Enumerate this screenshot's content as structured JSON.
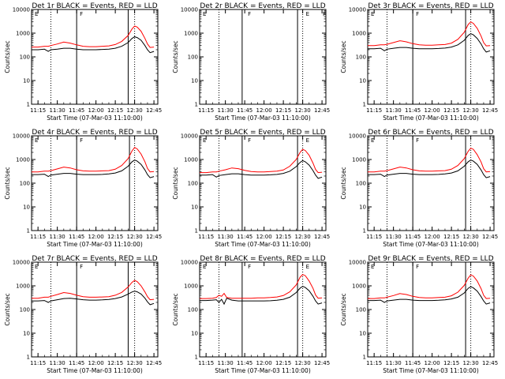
{
  "figure": {
    "title_suffix": "BLACK = Events, RED = LLD",
    "xlabel": "Start Time (07-Mar-03 11:10:00)",
    "ylabel": "Counts/sec",
    "y_ticks": [
      "1",
      "10",
      "100",
      "1000",
      "10000"
    ],
    "x_ticks": [
      "11:15",
      "11:30",
      "11:45",
      "12:00",
      "12:15",
      "12:30",
      "12:45"
    ],
    "colors": {
      "events": "#000000",
      "lld": "#ff0000"
    }
  },
  "chart_data": [
    {
      "type": "line",
      "detector": "Det 1r",
      "title": "Det 1r BLACK = Events, RED = LLD",
      "xlabel": "Start Time (07-Mar-03 11:10:00)",
      "ylabel": "Counts/sec",
      "y_scale": "log",
      "ylim": [
        1,
        10000
      ],
      "x_minutes_after_start": [
        0,
        5,
        10,
        13,
        15,
        20,
        25,
        30,
        35,
        40,
        45,
        50,
        55,
        60,
        65,
        70,
        75,
        78,
        80,
        82,
        85,
        88,
        90,
        92,
        95
      ],
      "series": [
        {
          "name": "Events",
          "values": [
            200,
            200,
            210,
            170,
            200,
            210,
            230,
            230,
            210,
            200,
            200,
            200,
            205,
            210,
            230,
            280,
            400,
            600,
            700,
            650,
            500,
            300,
            200,
            150,
            170
          ]
        },
        {
          "name": "LLD",
          "values": [
            260,
            260,
            280,
            280,
            300,
            350,
            420,
            380,
            320,
            280,
            270,
            270,
            280,
            290,
            330,
            450,
            800,
            1500,
            2000,
            1800,
            1200,
            600,
            350,
            250,
            260
          ]
        }
      ],
      "solid_vlines": [
        "11:45",
        "12:25"
      ],
      "dotted_vlines": [
        "11:25",
        "12:30"
      ],
      "markers": [
        "E",
        "F"
      ]
    },
    {
      "type": "line",
      "detector": "Det 2r",
      "title": "Det 2r BLACK = Events, RED = LLD",
      "xlabel": "Start Time (07-Mar-03 11:10:00)",
      "ylabel": "Counts/sec",
      "y_scale": "log",
      "ylim": [
        1,
        10000
      ],
      "series": [],
      "solid_vlines": [
        "11:43",
        "12:26"
      ],
      "dotted_vlines": [
        "11:25",
        "12:30"
      ],
      "markers": [
        "E",
        "F",
        "E",
        "F"
      ]
    },
    {
      "type": "line",
      "detector": "Det 3r",
      "title": "Det 3r BLACK = Events, RED = LLD",
      "xlabel": "Start Time (07-Mar-03 11:10:00)",
      "ylabel": "Counts/sec",
      "y_scale": "log",
      "ylim": [
        1,
        10000
      ],
      "x_minutes_after_start": [
        0,
        5,
        10,
        13,
        15,
        20,
        25,
        30,
        35,
        40,
        45,
        50,
        55,
        60,
        65,
        70,
        75,
        78,
        80,
        82,
        85,
        88,
        90,
        92,
        95
      ],
      "series": [
        {
          "name": "Events",
          "values": [
            220,
            220,
            230,
            180,
            210,
            230,
            250,
            250,
            230,
            220,
            220,
            220,
            225,
            235,
            260,
            320,
            500,
            800,
            950,
            850,
            600,
            350,
            220,
            160,
            180
          ]
        },
        {
          "name": "LLD",
          "values": [
            300,
            300,
            320,
            320,
            340,
            400,
            480,
            430,
            360,
            320,
            310,
            310,
            320,
            330,
            380,
            550,
            1100,
            2300,
            3000,
            2600,
            1600,
            750,
            400,
            290,
            300
          ]
        }
      ],
      "solid_vlines": [
        "11:45",
        "12:26"
      ],
      "dotted_vlines": [
        "11:25",
        "12:30"
      ],
      "markers": [
        "E",
        "F"
      ]
    },
    {
      "type": "line",
      "detector": "Det 4r",
      "title": "Det 4r BLACK = Events, RED = LLD",
      "xlabel": "Start Time (07-Mar-03 11:10:00)",
      "ylabel": "Counts/sec",
      "y_scale": "log",
      "ylim": [
        1,
        10000
      ],
      "x_minutes_after_start": [
        0,
        5,
        10,
        13,
        15,
        20,
        25,
        30,
        35,
        40,
        45,
        50,
        55,
        60,
        65,
        70,
        75,
        78,
        80,
        82,
        85,
        88,
        90,
        92,
        95
      ],
      "series": [
        {
          "name": "Events",
          "values": [
            230,
            230,
            240,
            190,
            220,
            240,
            260,
            260,
            240,
            230,
            230,
            230,
            235,
            245,
            270,
            330,
            520,
            800,
            950,
            850,
            620,
            360,
            230,
            170,
            190
          ]
        },
        {
          "name": "LLD",
          "values": [
            300,
            300,
            320,
            320,
            340,
            400,
            480,
            440,
            370,
            330,
            320,
            320,
            330,
            340,
            390,
            560,
            1100,
            2300,
            3200,
            2800,
            1700,
            800,
            420,
            300,
            310
          ]
        }
      ],
      "solid_vlines": [
        "11:45",
        "12:26"
      ],
      "dotted_vlines": [
        "11:25",
        "12:30"
      ],
      "markers": [
        "E",
        "F"
      ]
    },
    {
      "type": "line",
      "detector": "Det 5r",
      "title": "Det 5r BLACK = Events, RED = LLD",
      "xlabel": "Start Time (07-Mar-03 11:10:00)",
      "ylabel": "Counts/sec",
      "y_scale": "log",
      "ylim": [
        1,
        10000
      ],
      "x_minutes_after_start": [
        0,
        5,
        10,
        13,
        15,
        20,
        25,
        30,
        35,
        40,
        45,
        50,
        55,
        60,
        65,
        70,
        75,
        78,
        80,
        82,
        85,
        88,
        90,
        92,
        95
      ],
      "series": [
        {
          "name": "Events",
          "values": [
            220,
            220,
            230,
            180,
            210,
            230,
            250,
            250,
            230,
            220,
            220,
            220,
            225,
            235,
            260,
            320,
            500,
            750,
            900,
            800,
            580,
            340,
            220,
            160,
            180
          ]
        },
        {
          "name": "LLD",
          "values": [
            280,
            280,
            300,
            300,
            320,
            370,
            440,
            410,
            350,
            310,
            300,
            300,
            310,
            320,
            360,
            520,
            1000,
            2000,
            2700,
            2400,
            1500,
            700,
            380,
            280,
            290
          ]
        }
      ],
      "solid_vlines": [
        "11:43",
        "12:26"
      ],
      "dotted_vlines": [
        "11:25",
        "12:30"
      ],
      "markers": [
        "E",
        "F",
        "E"
      ]
    },
    {
      "type": "line",
      "detector": "Det 6r",
      "title": "Det 6r BLACK = Events, RED = LLD",
      "xlabel": "Start Time (07-Mar-03 11:10:00)",
      "ylabel": "Counts/sec",
      "y_scale": "log",
      "ylim": [
        1,
        10000
      ],
      "x_minutes_after_start": [
        0,
        5,
        10,
        13,
        15,
        20,
        25,
        30,
        35,
        40,
        45,
        50,
        55,
        60,
        65,
        70,
        75,
        78,
        80,
        82,
        85,
        88,
        90,
        92,
        95
      ],
      "series": [
        {
          "name": "Events",
          "values": [
            230,
            230,
            240,
            190,
            220,
            240,
            260,
            260,
            240,
            230,
            230,
            230,
            235,
            245,
            270,
            330,
            520,
            800,
            950,
            850,
            620,
            360,
            230,
            170,
            190
          ]
        },
        {
          "name": "LLD",
          "values": [
            300,
            300,
            320,
            320,
            340,
            400,
            480,
            440,
            370,
            330,
            320,
            320,
            330,
            340,
            390,
            560,
            1100,
            2200,
            3000,
            2700,
            1600,
            780,
            410,
            300,
            310
          ]
        }
      ],
      "solid_vlines": [
        "11:45",
        "12:26"
      ],
      "dotted_vlines": [
        "11:25",
        "12:30"
      ],
      "markers": [
        "E",
        "F"
      ]
    },
    {
      "type": "line",
      "detector": "Det 7r",
      "title": "Det 7r BLACK = Events, RED = LLD",
      "xlabel": "Start Time (07-Mar-03 11:10:00)",
      "ylabel": "Counts/sec",
      "y_scale": "log",
      "ylim": [
        1,
        10000
      ],
      "x_minutes_after_start": [
        0,
        5,
        10,
        13,
        15,
        20,
        25,
        30,
        35,
        40,
        45,
        50,
        55,
        60,
        65,
        70,
        75,
        78,
        80,
        82,
        85,
        88,
        90,
        92,
        95
      ],
      "series": [
        {
          "name": "Events",
          "values": [
            230,
            230,
            240,
            200,
            230,
            260,
            290,
            300,
            280,
            260,
            250,
            250,
            255,
            265,
            290,
            340,
            450,
            550,
            600,
            560,
            450,
            300,
            210,
            160,
            180
          ]
        },
        {
          "name": "LLD",
          "values": [
            300,
            300,
            330,
            330,
            360,
            430,
            520,
            480,
            400,
            350,
            330,
            330,
            340,
            350,
            400,
            530,
            900,
            1400,
            1700,
            1500,
            1000,
            550,
            350,
            260,
            270
          ]
        }
      ],
      "solid_vlines": [
        "11:45",
        "12:25"
      ],
      "dotted_vlines": [
        "11:25",
        "12:30"
      ],
      "markers": [
        "E",
        "F"
      ]
    },
    {
      "type": "line",
      "detector": "Det 8r",
      "title": "Det 8r BLACK = Events, RED = LLD",
      "xlabel": "Start Time (07-Mar-03 11:10:00)",
      "ylabel": "Counts/sec",
      "y_scale": "log",
      "ylim": [
        1,
        10000
      ],
      "x_minutes_after_start": [
        0,
        5,
        10,
        13,
        15,
        17,
        19,
        21,
        25,
        30,
        35,
        40,
        45,
        50,
        55,
        60,
        65,
        70,
        75,
        78,
        80,
        82,
        85,
        88,
        90,
        92,
        95
      ],
      "series": [
        {
          "name": "Events",
          "values": [
            240,
            240,
            250,
            260,
            200,
            270,
            170,
            300,
            250,
            230,
            230,
            230,
            230,
            230,
            235,
            245,
            270,
            330,
            520,
            800,
            950,
            850,
            620,
            360,
            230,
            170,
            190
          ]
        },
        {
          "name": "LLD",
          "values": [
            290,
            290,
            300,
            320,
            400,
            360,
            480,
            320,
            300,
            300,
            300,
            300,
            310,
            310,
            320,
            340,
            390,
            560,
            1100,
            2300,
            3000,
            2700,
            1600,
            780,
            410,
            300,
            310
          ]
        }
      ],
      "solid_vlines": [
        "11:43",
        "12:26"
      ],
      "dotted_vlines": [
        "11:25",
        "12:30"
      ],
      "markers": [
        "E",
        "F",
        "E"
      ]
    },
    {
      "type": "line",
      "detector": "Det 9r",
      "title": "Det 9r BLACK = Events, RED = LLD",
      "xlabel": "Start Time (07-Mar-03 11:10:00)",
      "ylabel": "Counts/sec",
      "y_scale": "log",
      "ylim": [
        1,
        10000
      ],
      "x_minutes_after_start": [
        0,
        5,
        10,
        13,
        15,
        20,
        25,
        30,
        35,
        40,
        45,
        50,
        55,
        60,
        65,
        70,
        75,
        78,
        80,
        82,
        85,
        88,
        90,
        92,
        95
      ],
      "series": [
        {
          "name": "Events",
          "values": [
            240,
            240,
            250,
            200,
            230,
            250,
            270,
            270,
            250,
            240,
            240,
            240,
            245,
            255,
            280,
            330,
            500,
            780,
            920,
            820,
            600,
            350,
            230,
            170,
            190
          ]
        },
        {
          "name": "LLD",
          "values": [
            290,
            290,
            310,
            310,
            330,
            390,
            470,
            430,
            360,
            320,
            310,
            310,
            320,
            330,
            380,
            540,
            1050,
            2100,
            2900,
            2600,
            1600,
            760,
            400,
            290,
            300
          ]
        }
      ],
      "solid_vlines": [
        "11:45",
        "12:26"
      ],
      "dotted_vlines": [
        "11:25",
        "12:30"
      ],
      "markers": [
        "E",
        "F"
      ]
    }
  ]
}
